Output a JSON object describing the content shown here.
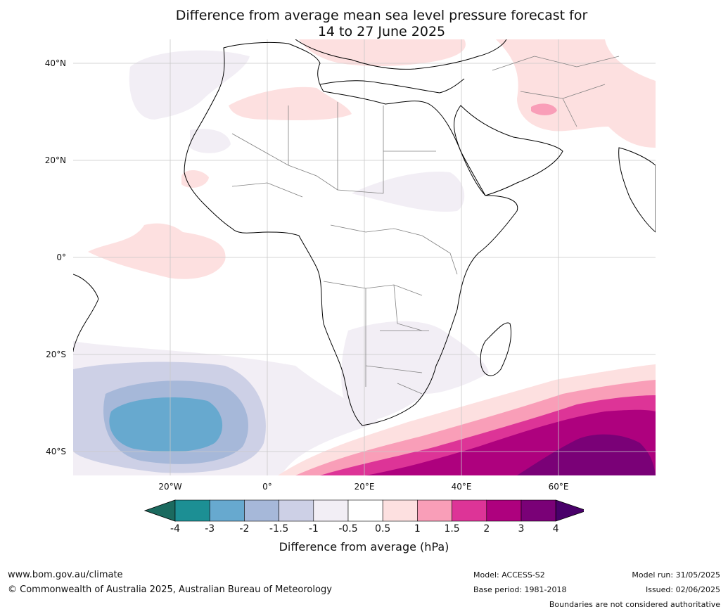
{
  "title": {
    "line1": "Difference from average mean sea level pressure forecast for",
    "line2": "14 to 27 June 2025"
  },
  "map": {
    "lat_labels": [
      "40°N",
      "20°N",
      "0°",
      "20°S",
      "40°S"
    ],
    "lon_labels": [
      "20°W",
      "0°",
      "20°E",
      "40°E",
      "60°E"
    ],
    "background": "#ffffff",
    "coastline_color": "#000000",
    "border_color": "#808080",
    "gridline_color": "#c8c8c8"
  },
  "colorbar": {
    "label": "Difference from average (hPa)",
    "ticks": [
      "-4",
      "-3",
      "-2",
      "-1.5",
      "-1",
      "-0.5",
      "0.5",
      "1",
      "1.5",
      "2",
      "3",
      "4"
    ],
    "colors": [
      "#1b6a5f",
      "#1c8f94",
      "#67a9cf",
      "#a6b8d9",
      "#cdd0e6",
      "#f2eef5",
      "#ffffff",
      "#fde0e0",
      "#f99eb8",
      "#dd3497",
      "#ae017e",
      "#7a0177",
      "#49006a"
    ]
  },
  "footer": {
    "website": "www.bom.gov.au/climate",
    "copyright": "© Commonwealth of Australia 2025, Australian Bureau of Meteorology",
    "model": "Model: ACCESS-S2",
    "base_period": "Base period: 1981-2018",
    "model_run": "Model run: 31/05/2025",
    "issued": "Issued: 02/06/2025",
    "disclaimer": "Boundaries are not considered authoritative"
  }
}
